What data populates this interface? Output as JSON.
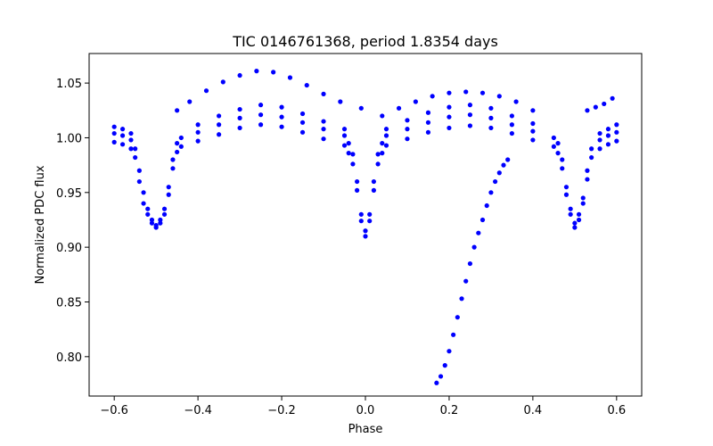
{
  "chart_data": {
    "type": "scatter",
    "title": "TIC 0146761368, period 1.8354 days",
    "xlabel": "Phase",
    "ylabel": "Normalized PDC flux",
    "xlim": [
      -0.66,
      0.66
    ],
    "ylim": [
      0.764,
      1.077
    ],
    "xticks": [
      -0.6,
      -0.4,
      -0.2,
      0.0,
      0.2,
      0.4,
      0.6
    ],
    "xticklabels": [
      "−0.6",
      "−0.4",
      "−0.2",
      "0.0",
      "0.2",
      "0.4",
      "0.6"
    ],
    "yticks": [
      0.8,
      0.85,
      0.9,
      0.95,
      1.0,
      1.05
    ],
    "yticklabels": [
      "0.80",
      "0.85",
      "0.90",
      "0.95",
      "1.00",
      "1.05"
    ],
    "grid": false,
    "legend": "none",
    "marker_color": "#0000ff",
    "series": [
      {
        "points": [
          [
            -0.6,
            1.004
          ],
          [
            -0.58,
            1.002
          ],
          [
            -0.56,
            0.998
          ],
          [
            -0.55,
            0.99
          ],
          [
            -0.54,
            0.97
          ],
          [
            -0.53,
            0.95
          ],
          [
            -0.52,
            0.935
          ],
          [
            -0.51,
            0.925
          ],
          [
            -0.5,
            0.92
          ],
          [
            -0.49,
            0.925
          ],
          [
            -0.48,
            0.935
          ],
          [
            -0.47,
            0.955
          ],
          [
            -0.46,
            0.98
          ],
          [
            -0.45,
            0.995
          ],
          [
            -0.44,
            1.0
          ],
          [
            -0.4,
            1.005
          ],
          [
            -0.35,
            1.012
          ],
          [
            -0.3,
            1.018
          ],
          [
            -0.25,
            1.021
          ],
          [
            -0.2,
            1.019
          ],
          [
            -0.15,
            1.014
          ],
          [
            -0.1,
            1.008
          ],
          [
            -0.05,
            1.002
          ],
          [
            -0.04,
            0.995
          ],
          [
            -0.03,
            0.985
          ],
          [
            -0.02,
            0.96
          ],
          [
            -0.01,
            0.93
          ],
          [
            0.0,
            0.915
          ],
          [
            0.01,
            0.93
          ],
          [
            0.02,
            0.96
          ],
          [
            0.03,
            0.985
          ],
          [
            0.04,
            0.995
          ],
          [
            0.05,
            1.002
          ],
          [
            0.1,
            1.008
          ],
          [
            0.15,
            1.014
          ],
          [
            0.2,
            1.019
          ],
          [
            0.25,
            1.021
          ],
          [
            0.3,
            1.018
          ],
          [
            0.35,
            1.012
          ],
          [
            0.4,
            1.006
          ],
          [
            0.45,
            1.0
          ],
          [
            0.46,
            0.995
          ],
          [
            0.47,
            0.98
          ],
          [
            0.48,
            0.955
          ],
          [
            0.49,
            0.935
          ],
          [
            0.5,
            0.922
          ],
          [
            0.51,
            0.93
          ],
          [
            0.52,
            0.945
          ],
          [
            0.53,
            0.97
          ],
          [
            0.54,
            0.99
          ],
          [
            0.56,
            0.998
          ],
          [
            0.58,
            1.002
          ],
          [
            0.6,
            1.005
          ],
          [
            -0.6,
            0.996
          ],
          [
            -0.58,
            0.994
          ],
          [
            -0.56,
            0.99
          ],
          [
            -0.55,
            0.982
          ],
          [
            -0.54,
            0.96
          ],
          [
            -0.53,
            0.94
          ],
          [
            -0.52,
            0.93
          ],
          [
            -0.51,
            0.922
          ],
          [
            -0.5,
            0.918
          ],
          [
            -0.49,
            0.922
          ],
          [
            -0.48,
            0.93
          ],
          [
            -0.47,
            0.948
          ],
          [
            -0.46,
            0.972
          ],
          [
            -0.45,
            0.987
          ],
          [
            -0.44,
            0.992
          ],
          [
            -0.4,
            0.997
          ],
          [
            -0.35,
            1.003
          ],
          [
            -0.3,
            1.009
          ],
          [
            -0.25,
            1.012
          ],
          [
            -0.2,
            1.01
          ],
          [
            -0.15,
            1.005
          ],
          [
            -0.1,
            0.999
          ],
          [
            -0.05,
            0.993
          ],
          [
            -0.04,
            0.986
          ],
          [
            -0.03,
            0.976
          ],
          [
            -0.02,
            0.952
          ],
          [
            -0.01,
            0.924
          ],
          [
            0.0,
            0.91
          ],
          [
            0.01,
            0.924
          ],
          [
            0.02,
            0.952
          ],
          [
            0.03,
            0.976
          ],
          [
            0.04,
            0.986
          ],
          [
            0.05,
            0.993
          ],
          [
            0.1,
            0.999
          ],
          [
            0.15,
            1.005
          ],
          [
            0.2,
            1.009
          ],
          [
            0.25,
            1.011
          ],
          [
            0.3,
            1.009
          ],
          [
            0.35,
            1.004
          ],
          [
            0.4,
            0.998
          ],
          [
            0.45,
            0.992
          ],
          [
            0.46,
            0.986
          ],
          [
            0.47,
            0.972
          ],
          [
            0.48,
            0.948
          ],
          [
            0.49,
            0.93
          ],
          [
            0.5,
            0.918
          ],
          [
            0.51,
            0.925
          ],
          [
            0.52,
            0.94
          ],
          [
            0.53,
            0.962
          ],
          [
            0.54,
            0.982
          ],
          [
            0.56,
            0.99
          ],
          [
            0.58,
            0.994
          ],
          [
            0.6,
            0.997
          ],
          [
            -0.6,
            1.01
          ],
          [
            -0.58,
            1.008
          ],
          [
            -0.56,
            1.004
          ],
          [
            -0.4,
            1.012
          ],
          [
            -0.35,
            1.02
          ],
          [
            -0.3,
            1.026
          ],
          [
            -0.25,
            1.03
          ],
          [
            -0.2,
            1.028
          ],
          [
            -0.15,
            1.022
          ],
          [
            -0.1,
            1.015
          ],
          [
            -0.05,
            1.008
          ],
          [
            0.05,
            1.008
          ],
          [
            0.1,
            1.016
          ],
          [
            0.15,
            1.023
          ],
          [
            0.2,
            1.028
          ],
          [
            0.25,
            1.03
          ],
          [
            0.3,
            1.027
          ],
          [
            0.35,
            1.02
          ],
          [
            0.4,
            1.013
          ],
          [
            0.56,
            1.004
          ],
          [
            0.58,
            1.008
          ],
          [
            0.6,
            1.012
          ],
          [
            -0.45,
            1.025
          ],
          [
            -0.42,
            1.033
          ],
          [
            -0.38,
            1.043
          ],
          [
            -0.34,
            1.051
          ],
          [
            -0.3,
            1.057
          ],
          [
            -0.26,
            1.061
          ],
          [
            -0.22,
            1.06
          ],
          [
            -0.18,
            1.055
          ],
          [
            -0.14,
            1.048
          ],
          [
            -0.1,
            1.04
          ],
          [
            -0.06,
            1.033
          ],
          [
            -0.01,
            1.027
          ],
          [
            0.04,
            1.02
          ],
          [
            0.08,
            1.027
          ],
          [
            0.12,
            1.033
          ],
          [
            0.16,
            1.038
          ],
          [
            0.2,
            1.041
          ],
          [
            0.24,
            1.042
          ],
          [
            0.28,
            1.041
          ],
          [
            0.32,
            1.038
          ],
          [
            0.36,
            1.033
          ],
          [
            0.4,
            1.025
          ],
          [
            0.17,
            0.776
          ],
          [
            0.18,
            0.782
          ],
          [
            0.19,
            0.792
          ],
          [
            0.2,
            0.805
          ],
          [
            0.21,
            0.82
          ],
          [
            0.22,
            0.836
          ],
          [
            0.23,
            0.853
          ],
          [
            0.24,
            0.869
          ],
          [
            0.25,
            0.885
          ],
          [
            0.26,
            0.9
          ],
          [
            0.27,
            0.913
          ],
          [
            0.28,
            0.925
          ],
          [
            0.29,
            0.938
          ],
          [
            0.3,
            0.95
          ],
          [
            0.31,
            0.96
          ],
          [
            0.32,
            0.968
          ],
          [
            0.33,
            0.975
          ],
          [
            0.34,
            0.98
          ],
          [
            0.53,
            1.025
          ],
          [
            0.55,
            1.028
          ],
          [
            0.57,
            1.031
          ],
          [
            0.59,
            1.036
          ]
        ]
      }
    ]
  }
}
